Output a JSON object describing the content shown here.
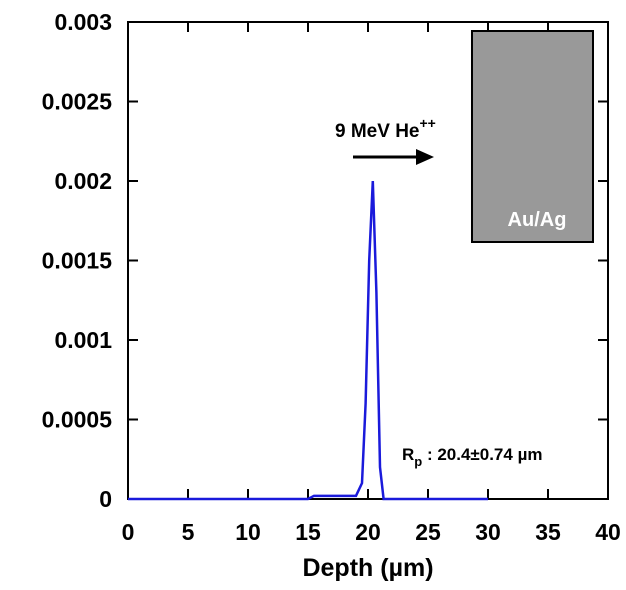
{
  "chart_data": {
    "type": "line",
    "x_label": "Depth (µm)",
    "x": [
      0,
      5,
      10,
      15,
      15.5,
      19,
      19.5,
      19.8,
      20.1,
      20.4,
      20.7,
      21,
      21.3,
      22,
      25,
      30
    ],
    "series": [
      {
        "color": "#1a1adb",
        "values": [
          0,
          0,
          0,
          0,
          2e-05,
          2e-05,
          0.0001,
          0.0006,
          0.0015,
          0.002,
          0.0013,
          0.0002,
          0,
          0,
          0,
          0
        ]
      }
    ],
    "xlim": [
      0,
      40
    ],
    "xticks": [
      0,
      5,
      10,
      15,
      20,
      25,
      30,
      35,
      40
    ],
    "ylim": [
      0,
      0.003
    ],
    "yticks": [
      0,
      0.0005,
      0.001,
      0.0015,
      0.002,
      0.0025,
      0.003
    ],
    "annotations": {
      "beam": {
        "text": "9 MeV He",
        "sup": "++"
      },
      "target": "Au/Ag",
      "range": {
        "text": "R",
        "sub": "p",
        "rest": " : 20.4±0.74 µm"
      }
    }
  }
}
